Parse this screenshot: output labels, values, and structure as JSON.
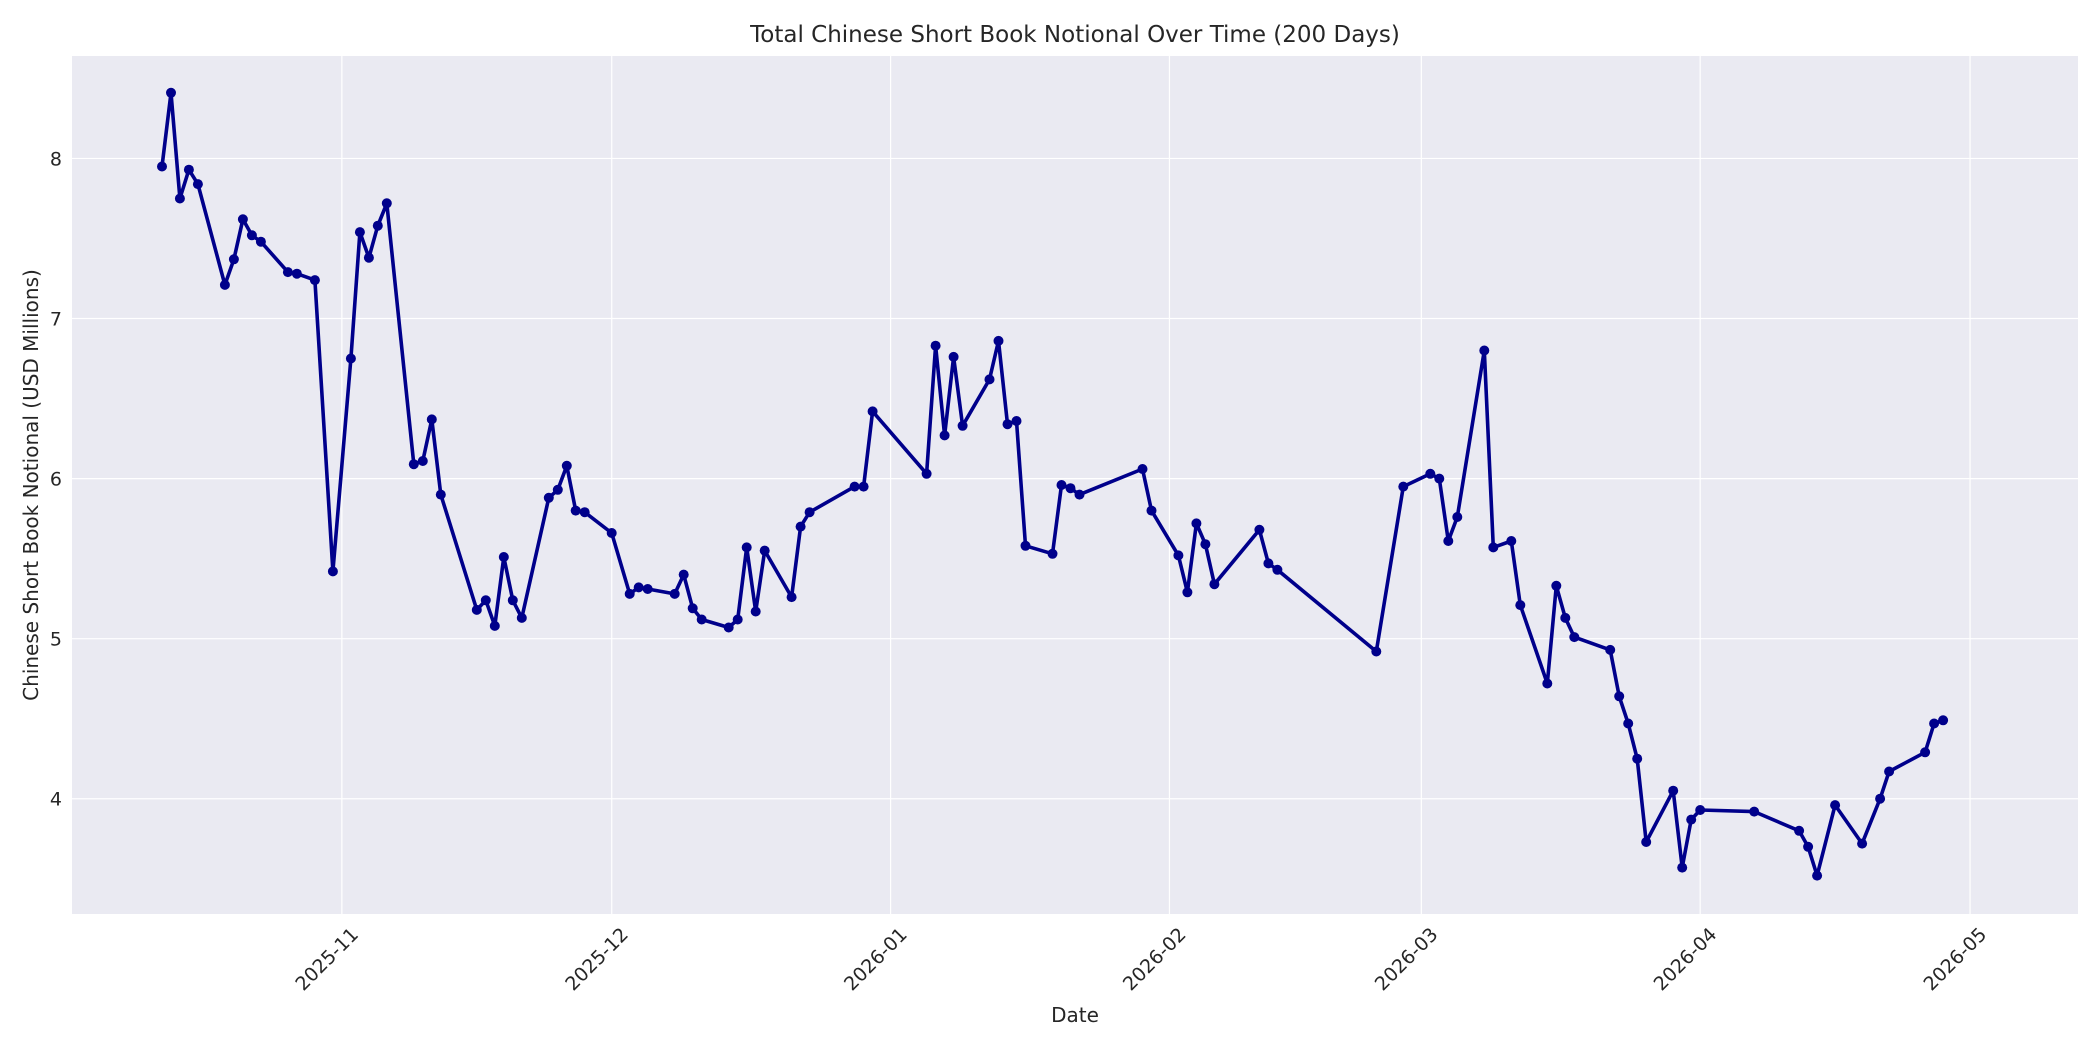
{
  "chart_data": {
    "type": "line",
    "title": "Total Chinese Short Book Notional Over Time (200 Days)",
    "xlabel": "Date",
    "ylabel": "Chinese Short Book Notional (USD Millions)",
    "xlim": [
      "2025-10-02",
      "2026-05-13"
    ],
    "ylim": [
      3.28,
      8.64
    ],
    "x_ticks": [
      "2025-11",
      "2025-12",
      "2026-01",
      "2026-02",
      "2026-03",
      "2026-04",
      "2026-05"
    ],
    "y_ticks": [
      4,
      5,
      6,
      7,
      8
    ],
    "grid": true,
    "colors": {
      "line": "#00008b",
      "plot_bg": "#eaeaf2",
      "grid": "#ffffff"
    },
    "series": [
      {
        "x": [
          "2025-10-12",
          "2025-10-13",
          "2025-10-14",
          "2025-10-15",
          "2025-10-16",
          "2025-10-19",
          "2025-10-20",
          "2025-10-21",
          "2025-10-22",
          "2025-10-23",
          "2025-10-26",
          "2025-10-27",
          "2025-10-29",
          "2025-10-31",
          "2025-11-02",
          "2025-11-03",
          "2025-11-04",
          "2025-11-05",
          "2025-11-06",
          "2025-11-09",
          "2025-11-10",
          "2025-11-11",
          "2025-11-12",
          "2025-11-16",
          "2025-11-17",
          "2025-11-18",
          "2025-11-19",
          "2025-11-20",
          "2025-11-21",
          "2025-11-24",
          "2025-11-25",
          "2025-11-26",
          "2025-11-27",
          "2025-11-28",
          "2025-12-01",
          "2025-12-03",
          "2025-12-04",
          "2025-12-05",
          "2025-12-08",
          "2025-12-09",
          "2025-12-10",
          "2025-12-11",
          "2025-12-14",
          "2025-12-15",
          "2025-12-16",
          "2025-12-17",
          "2025-12-18",
          "2025-12-21",
          "2025-12-22",
          "2025-12-23",
          "2025-12-28",
          "2025-12-29",
          "2025-12-30",
          "2026-01-05",
          "2026-01-06",
          "2026-01-07",
          "2026-01-08",
          "2026-01-09",
          "2026-01-12",
          "2026-01-13",
          "2026-01-14",
          "2026-01-15",
          "2026-01-16",
          "2026-01-19",
          "2026-01-20",
          "2026-01-21",
          "2026-01-22",
          "2026-01-29",
          "2026-01-30",
          "2026-02-02",
          "2026-02-03",
          "2026-02-04",
          "2026-02-05",
          "2026-02-06",
          "2026-02-11",
          "2026-02-12",
          "2026-02-13",
          "2026-02-24",
          "2026-02-27",
          "2026-03-02",
          "2026-03-03",
          "2026-03-04",
          "2026-03-05",
          "2026-03-08",
          "2026-03-09",
          "2026-03-11",
          "2026-03-12",
          "2026-03-15",
          "2026-03-16",
          "2026-03-17",
          "2026-03-18",
          "2026-03-22",
          "2026-03-23",
          "2026-03-24",
          "2026-03-25",
          "2026-03-26",
          "2026-03-29",
          "2026-03-30",
          "2026-03-31",
          "2026-04-01",
          "2026-04-07",
          "2026-04-12",
          "2026-04-13",
          "2026-04-14",
          "2026-04-16",
          "2026-04-19",
          "2026-04-21",
          "2026-04-22",
          "2026-04-26",
          "2026-04-27",
          "2026-04-28"
        ],
        "values": [
          7.95,
          8.41,
          7.75,
          7.93,
          7.84,
          7.21,
          7.37,
          7.62,
          7.52,
          7.48,
          7.29,
          7.28,
          7.24,
          5.42,
          6.75,
          7.54,
          7.38,
          7.58,
          7.72,
          6.09,
          6.11,
          6.37,
          5.9,
          5.18,
          5.24,
          5.08,
          5.51,
          5.24,
          5.13,
          5.88,
          5.93,
          6.08,
          5.8,
          5.79,
          5.66,
          5.28,
          5.32,
          5.31,
          5.28,
          5.4,
          5.19,
          5.12,
          5.07,
          5.12,
          5.57,
          5.17,
          5.55,
          5.26,
          5.7,
          5.79,
          5.95,
          5.95,
          6.42,
          6.03,
          6.83,
          6.27,
          6.76,
          6.33,
          6.62,
          6.86,
          6.34,
          6.36,
          5.58,
          5.53,
          5.96,
          5.94,
          5.9,
          6.06,
          5.8,
          5.52,
          5.29,
          5.72,
          5.59,
          5.34,
          5.68,
          5.47,
          5.43,
          4.92,
          5.95,
          6.03,
          6.0,
          5.61,
          5.76,
          6.8,
          5.57,
          5.61,
          5.21,
          4.72,
          5.33,
          5.13,
          5.01,
          4.93,
          4.64,
          4.47,
          4.25,
          3.73,
          4.05,
          3.57,
          3.87,
          3.93,
          3.92,
          3.8,
          3.7,
          3.52,
          3.96,
          3.72,
          4.0,
          4.17,
          4.29,
          4.47,
          4.49
        ]
      }
    ]
  }
}
